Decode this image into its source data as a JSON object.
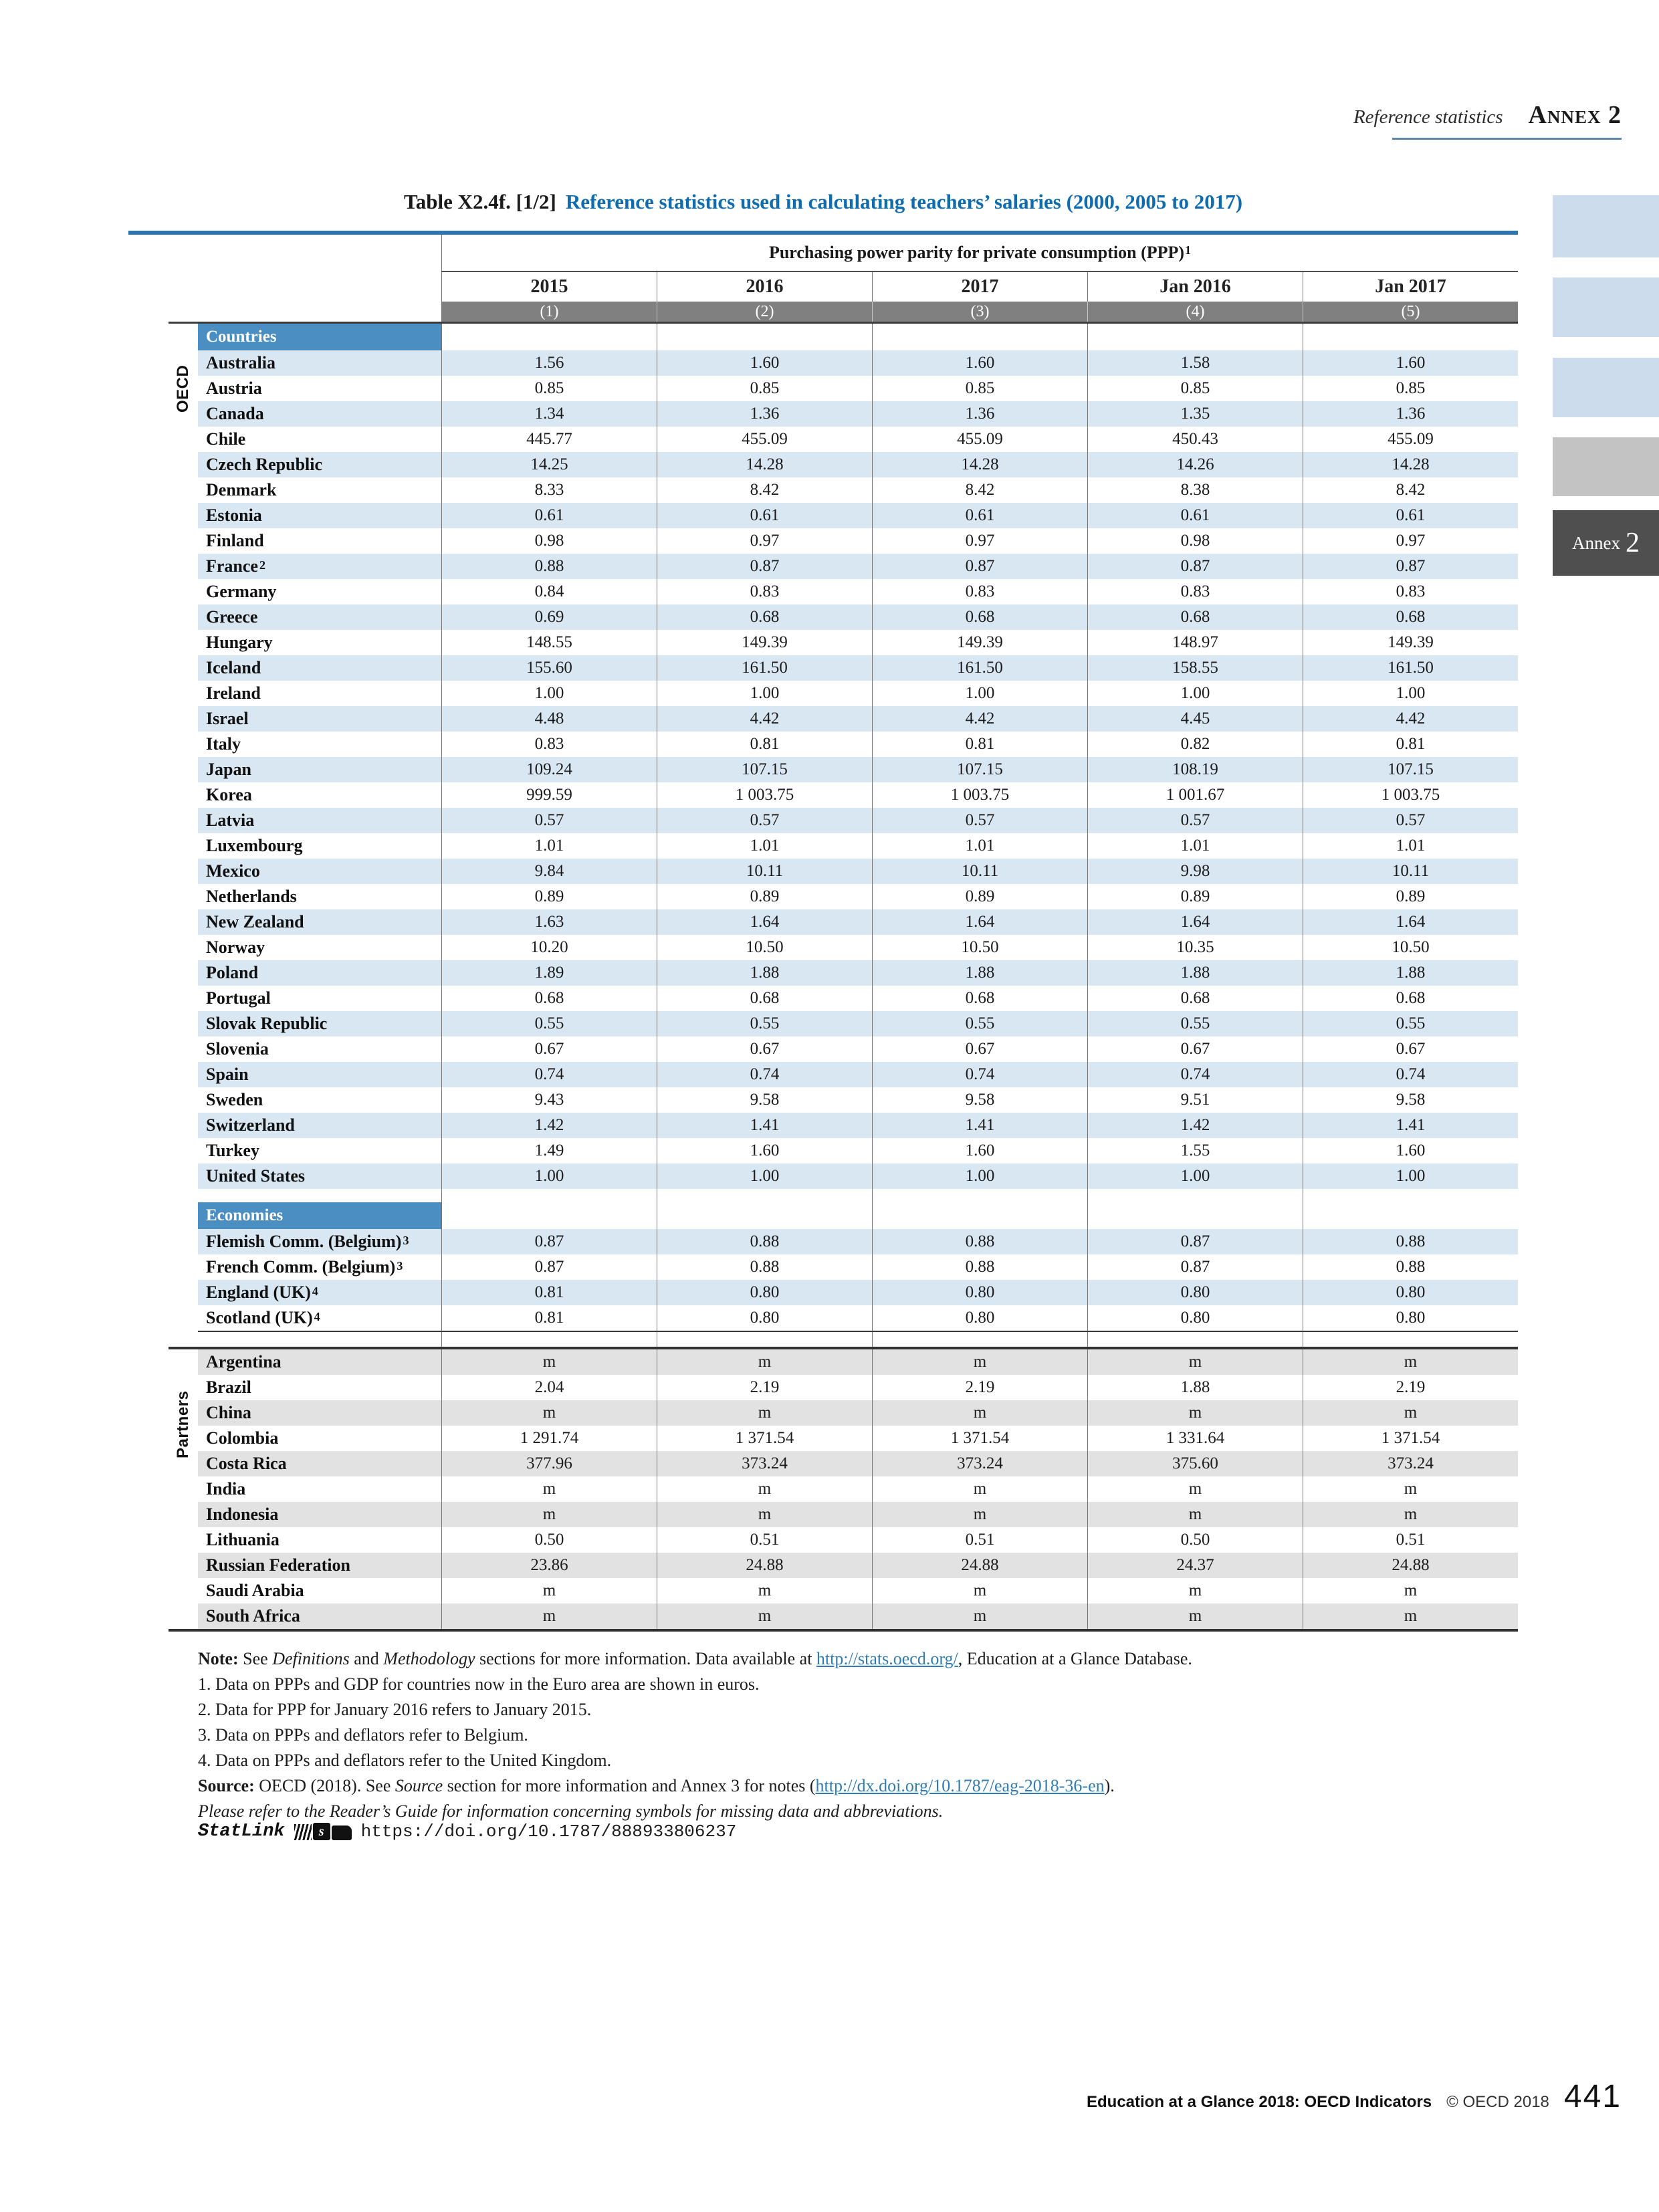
{
  "header": {
    "section": "Reference statistics",
    "annex": "Annex 2"
  },
  "title": {
    "prefix": "Table X2.4f. [1/2]",
    "main": "Reference statistics used in calculating teachers’ salaries (2000, 2005 to 2017)"
  },
  "table": {
    "span_header": "Purchasing power parity for private consumption (PPP)",
    "span_header_sup": "1",
    "columns": [
      "2015",
      "2016",
      "2017",
      "Jan 2016",
      "Jan 2017"
    ],
    "col_nums": [
      "(1)",
      "(2)",
      "(3)",
      "(4)",
      "(5)"
    ],
    "oecd": {
      "sidebar_label": "OECD",
      "header": "Countries",
      "rows": [
        {
          "label": "Australia",
          "values": [
            "1.56",
            "1.60",
            "1.60",
            "1.58",
            "1.60"
          ]
        },
        {
          "label": "Austria",
          "values": [
            "0.85",
            "0.85",
            "0.85",
            "0.85",
            "0.85"
          ]
        },
        {
          "label": "Canada",
          "values": [
            "1.34",
            "1.36",
            "1.36",
            "1.35",
            "1.36"
          ]
        },
        {
          "label": "Chile",
          "values": [
            "445.77",
            "455.09",
            "455.09",
            "450.43",
            "455.09"
          ]
        },
        {
          "label": "Czech Republic",
          "values": [
            "14.25",
            "14.28",
            "14.28",
            "14.26",
            "14.28"
          ]
        },
        {
          "label": "Denmark",
          "values": [
            "8.33",
            "8.42",
            "8.42",
            "8.38",
            "8.42"
          ]
        },
        {
          "label": "Estonia",
          "values": [
            "0.61",
            "0.61",
            "0.61",
            "0.61",
            "0.61"
          ]
        },
        {
          "label": "Finland",
          "values": [
            "0.98",
            "0.97",
            "0.97",
            "0.98",
            "0.97"
          ]
        },
        {
          "label": "France",
          "sup": "2",
          "values": [
            "0.88",
            "0.87",
            "0.87",
            "0.87",
            "0.87"
          ]
        },
        {
          "label": "Germany",
          "values": [
            "0.84",
            "0.83",
            "0.83",
            "0.83",
            "0.83"
          ]
        },
        {
          "label": "Greece",
          "values": [
            "0.69",
            "0.68",
            "0.68",
            "0.68",
            "0.68"
          ]
        },
        {
          "label": "Hungary",
          "values": [
            "148.55",
            "149.39",
            "149.39",
            "148.97",
            "149.39"
          ]
        },
        {
          "label": "Iceland",
          "values": [
            "155.60",
            "161.50",
            "161.50",
            "158.55",
            "161.50"
          ]
        },
        {
          "label": "Ireland",
          "values": [
            "1.00",
            "1.00",
            "1.00",
            "1.00",
            "1.00"
          ]
        },
        {
          "label": "Israel",
          "values": [
            "4.48",
            "4.42",
            "4.42",
            "4.45",
            "4.42"
          ]
        },
        {
          "label": "Italy",
          "values": [
            "0.83",
            "0.81",
            "0.81",
            "0.82",
            "0.81"
          ]
        },
        {
          "label": "Japan",
          "values": [
            "109.24",
            "107.15",
            "107.15",
            "108.19",
            "107.15"
          ]
        },
        {
          "label": "Korea",
          "values": [
            "999.59",
            "1 003.75",
            "1 003.75",
            "1 001.67",
            "1 003.75"
          ]
        },
        {
          "label": "Latvia",
          "values": [
            "0.57",
            "0.57",
            "0.57",
            "0.57",
            "0.57"
          ]
        },
        {
          "label": "Luxembourg",
          "values": [
            "1.01",
            "1.01",
            "1.01",
            "1.01",
            "1.01"
          ]
        },
        {
          "label": "Mexico",
          "values": [
            "9.84",
            "10.11",
            "10.11",
            "9.98",
            "10.11"
          ]
        },
        {
          "label": "Netherlands",
          "values": [
            "0.89",
            "0.89",
            "0.89",
            "0.89",
            "0.89"
          ]
        },
        {
          "label": "New Zealand",
          "values": [
            "1.63",
            "1.64",
            "1.64",
            "1.64",
            "1.64"
          ]
        },
        {
          "label": "Norway",
          "values": [
            "10.20",
            "10.50",
            "10.50",
            "10.35",
            "10.50"
          ]
        },
        {
          "label": "Poland",
          "values": [
            "1.89",
            "1.88",
            "1.88",
            "1.88",
            "1.88"
          ]
        },
        {
          "label": "Portugal",
          "values": [
            "0.68",
            "0.68",
            "0.68",
            "0.68",
            "0.68"
          ]
        },
        {
          "label": "Slovak Republic",
          "values": [
            "0.55",
            "0.55",
            "0.55",
            "0.55",
            "0.55"
          ]
        },
        {
          "label": "Slovenia",
          "values": [
            "0.67",
            "0.67",
            "0.67",
            "0.67",
            "0.67"
          ]
        },
        {
          "label": "Spain",
          "values": [
            "0.74",
            "0.74",
            "0.74",
            "0.74",
            "0.74"
          ]
        },
        {
          "label": "Sweden",
          "values": [
            "9.43",
            "9.58",
            "9.58",
            "9.51",
            "9.58"
          ]
        },
        {
          "label": "Switzerland",
          "values": [
            "1.42",
            "1.41",
            "1.41",
            "1.42",
            "1.41"
          ]
        },
        {
          "label": "Turkey",
          "values": [
            "1.49",
            "1.60",
            "1.60",
            "1.55",
            "1.60"
          ]
        },
        {
          "label": "United States",
          "values": [
            "1.00",
            "1.00",
            "1.00",
            "1.00",
            "1.00"
          ]
        }
      ]
    },
    "economies": {
      "header": "Economies",
      "rows": [
        {
          "label": "Flemish Comm. (Belgium)",
          "sup": "3",
          "values": [
            "0.87",
            "0.88",
            "0.88",
            "0.87",
            "0.88"
          ]
        },
        {
          "label": "French Comm. (Belgium)",
          "sup": "3",
          "values": [
            "0.87",
            "0.88",
            "0.88",
            "0.87",
            "0.88"
          ]
        },
        {
          "label": "England (UK)",
          "sup": "4",
          "values": [
            "0.81",
            "0.80",
            "0.80",
            "0.80",
            "0.80"
          ]
        },
        {
          "label": "Scotland (UK)",
          "sup": "4",
          "values": [
            "0.81",
            "0.80",
            "0.80",
            "0.80",
            "0.80"
          ]
        }
      ]
    },
    "partners": {
      "sidebar_label": "Partners",
      "rows": [
        {
          "label": "Argentina",
          "values": [
            "m",
            "m",
            "m",
            "m",
            "m"
          ]
        },
        {
          "label": "Brazil",
          "values": [
            "2.04",
            "2.19",
            "2.19",
            "1.88",
            "2.19"
          ]
        },
        {
          "label": "China",
          "values": [
            "m",
            "m",
            "m",
            "m",
            "m"
          ]
        },
        {
          "label": "Colombia",
          "values": [
            "1 291.74",
            "1 371.54",
            "1 371.54",
            "1 331.64",
            "1 371.54"
          ]
        },
        {
          "label": "Costa Rica",
          "values": [
            "377.96",
            "373.24",
            "373.24",
            "375.60",
            "373.24"
          ]
        },
        {
          "label": "India",
          "values": [
            "m",
            "m",
            "m",
            "m",
            "m"
          ]
        },
        {
          "label": "Indonesia",
          "values": [
            "m",
            "m",
            "m",
            "m",
            "m"
          ]
        },
        {
          "label": "Lithuania",
          "values": [
            "0.50",
            "0.51",
            "0.51",
            "0.50",
            "0.51"
          ]
        },
        {
          "label": "Russian Federation",
          "values": [
            "23.86",
            "24.88",
            "24.88",
            "24.37",
            "24.88"
          ]
        },
        {
          "label": "Saudi Arabia",
          "values": [
            "m",
            "m",
            "m",
            "m",
            "m"
          ]
        },
        {
          "label": "South Africa",
          "values": [
            "m",
            "m",
            "m",
            "m",
            "m"
          ]
        }
      ]
    }
  },
  "notes": [
    {
      "segments": [
        {
          "b": "Note:"
        },
        {
          "t": " See "
        },
        {
          "i": "Definitions"
        },
        {
          "t": " and "
        },
        {
          "i": "Methodology"
        },
        {
          "t": " sections for more information. Data available at "
        },
        {
          "link": "http://stats.oecd.org/"
        },
        {
          "t": ", Education at a Glance Database."
        }
      ]
    },
    {
      "segments": [
        {
          "t": "1. Data on PPPs and GDP for countries now in the Euro area are shown in euros."
        }
      ]
    },
    {
      "segments": [
        {
          "t": "2. Data for PPP for January 2016 refers to January 2015."
        }
      ]
    },
    {
      "segments": [
        {
          "t": "3. Data on PPPs and deflators refer to Belgium."
        }
      ]
    },
    {
      "segments": [
        {
          "t": "4. Data on PPPs and deflators refer to the United Kingdom."
        }
      ]
    },
    {
      "segments": [
        {
          "b": "Source:"
        },
        {
          "t": " OECD (2018). See "
        },
        {
          "i": "Source"
        },
        {
          "t": " section for more information and Annex 3 for notes ("
        },
        {
          "link": "http://dx.doi.org/10.1787/eag-2018-36-en"
        },
        {
          "t": ")."
        }
      ]
    },
    {
      "segments": [
        {
          "i": "Please refer to the Reader’s Guide for information concerning symbols for missing data and abbreviations."
        }
      ]
    }
  ],
  "statlink": {
    "label": "StatLink",
    "url": "https://doi.org/10.1787/888933806237"
  },
  "footer": {
    "book": "Education at a Glance 2018: OECD Indicators",
    "copyright": "© OECD 2018",
    "page": "441"
  },
  "annex_tab": {
    "word": "Annex",
    "number": "2"
  },
  "colors": {
    "title_blue": "#0f6cae",
    "rule_blue": "#2d74b4",
    "section_header_blue": "#4b8ec2",
    "row_blue": "#d9e7f3",
    "row_gray": "#e2e2e2",
    "number_band_gray": "#808080",
    "tab_light_blue": "#ccdcec",
    "tab_gray": "#c3c3c3",
    "tab_dark": "#4f4f4f",
    "link_blue": "#2f7cb4"
  }
}
